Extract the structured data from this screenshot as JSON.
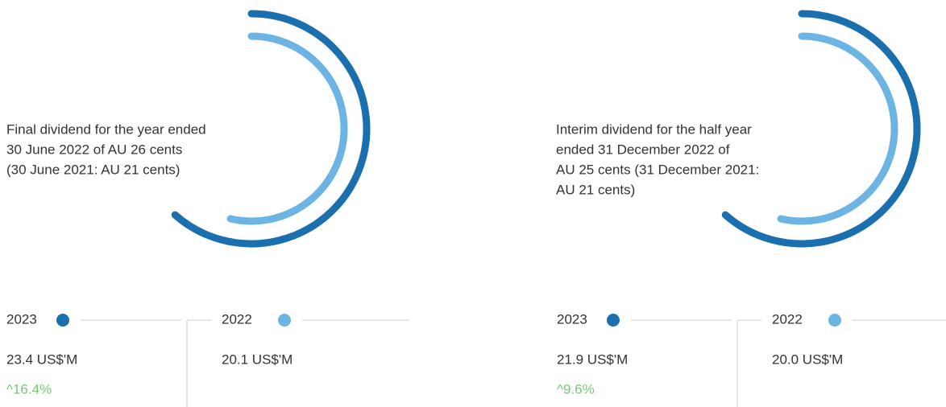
{
  "panels": [
    {
      "description": [
        "Final dividend for the year ended",
        "30 June 2022 of AU 26 cents",
        "(30 June 2021: AU 21 cents)"
      ],
      "current": {
        "year": "2023",
        "value": "23.4 US$'M",
        "change": "^16.4%"
      },
      "prior": {
        "year": "2022",
        "value": "20.1 US$'M"
      }
    },
    {
      "description": [
        "Interim dividend for the half year",
        "ended 31 December 2022 of",
        "AU 25 cents (31 December 2021:",
        "AU 21 cents)"
      ],
      "current": {
        "year": "2023",
        "value": "21.9 US$'M",
        "change": "^9.6%"
      },
      "prior": {
        "year": "2022",
        "value": "20.0 US$'M"
      }
    }
  ]
}
